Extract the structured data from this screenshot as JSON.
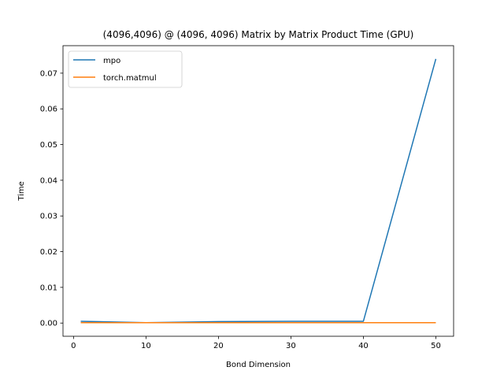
{
  "chart_data": {
    "type": "line",
    "title": "(4096,4096) @ (4096, 4096) Matrix by Matrix Product Time (GPU)",
    "xlabel": "Bond Dimension",
    "ylabel": "Time",
    "xlim": [
      -1.45,
      52.45
    ],
    "ylim": [
      -0.0037,
      0.0777
    ],
    "xticks": [
      0,
      10,
      20,
      30,
      40,
      50
    ],
    "yticks": [
      0.0,
      0.01,
      0.02,
      0.03,
      0.04,
      0.05,
      0.06,
      0.07
    ],
    "xtick_labels": [
      "0",
      "10",
      "20",
      "30",
      "40",
      "50"
    ],
    "ytick_labels": [
      "0.00",
      "0.01",
      "0.02",
      "0.03",
      "0.04",
      "0.05",
      "0.06",
      "0.07"
    ],
    "grid": false,
    "legend_position": "upper-left",
    "x": [
      1,
      10,
      20,
      30,
      40,
      50
    ],
    "series": [
      {
        "name": "mpo",
        "color": "#1f77b4",
        "values": [
          0.0005,
          0.0001,
          0.0004,
          0.0005,
          0.0005,
          0.074
        ]
      },
      {
        "name": "torch.matmul",
        "color": "#ff7f0e",
        "values": [
          0.0001,
          0.0001,
          0.0001,
          0.0001,
          0.0001,
          0.0001
        ]
      }
    ]
  }
}
